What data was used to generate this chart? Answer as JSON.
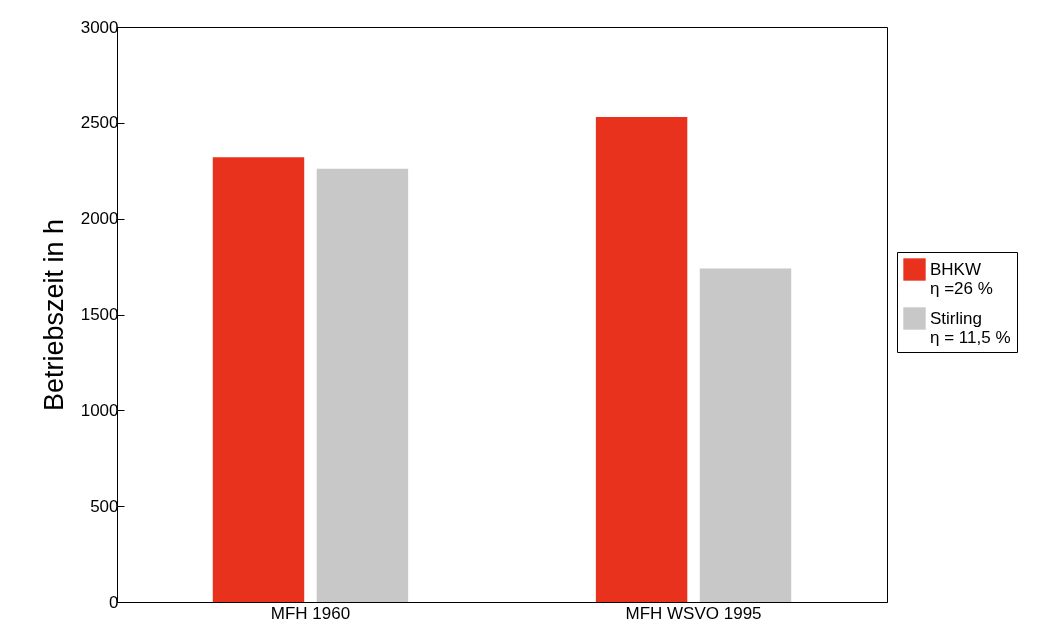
{
  "chart_data": {
    "type": "bar",
    "ylabel": "Betriebszeit in h",
    "categories": [
      "MFH 1960",
      "MFH WSVO 1995"
    ],
    "series": [
      {
        "name": "BHKW\nη =26 %",
        "color": "#e8321e",
        "values": [
          2320,
          2530
        ]
      },
      {
        "name": "Stirling\nη = 11,5 %",
        "color": "#c8c8c8",
        "values": [
          2260,
          1740
        ]
      }
    ],
    "ylim": [
      0,
      3000
    ],
    "yticks": [
      0,
      500,
      1000,
      1500,
      2000,
      2500,
      3000
    ],
    "grid": false,
    "legend": "right"
  }
}
